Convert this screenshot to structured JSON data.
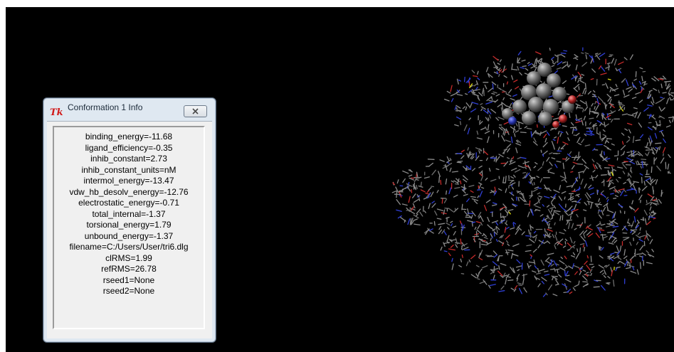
{
  "dialog": {
    "title": "Conformation 1 Info",
    "app_icon": "tk-feather-icon",
    "close_icon": "close-x-icon",
    "lines": [
      "binding_energy=-11.68",
      "ligand_efficiency=-0.35",
      "inhib_constant=2.73",
      "inhib_constant_units=nM",
      "intermol_energy=-13.47",
      "vdw_hb_desolv_energy=-12.76",
      "electrostatic_energy=-0.71",
      "total_internal=-1.37",
      "torsional_energy=1.79",
      "unbound_energy=-1.37",
      "filename=C:/Users/User/tri6.dlg",
      "clRMS=1.99",
      "refRMS=26.78",
      "rseed1=None",
      "rseed2=None"
    ]
  },
  "viewer": {
    "background": "#000000",
    "atom_colors": [
      "#8a8a8a",
      "#6e6e6e",
      "#2f3fd6",
      "#c62a2a",
      "#e0e010"
    ],
    "ligand_color": "#7a7a7a"
  }
}
